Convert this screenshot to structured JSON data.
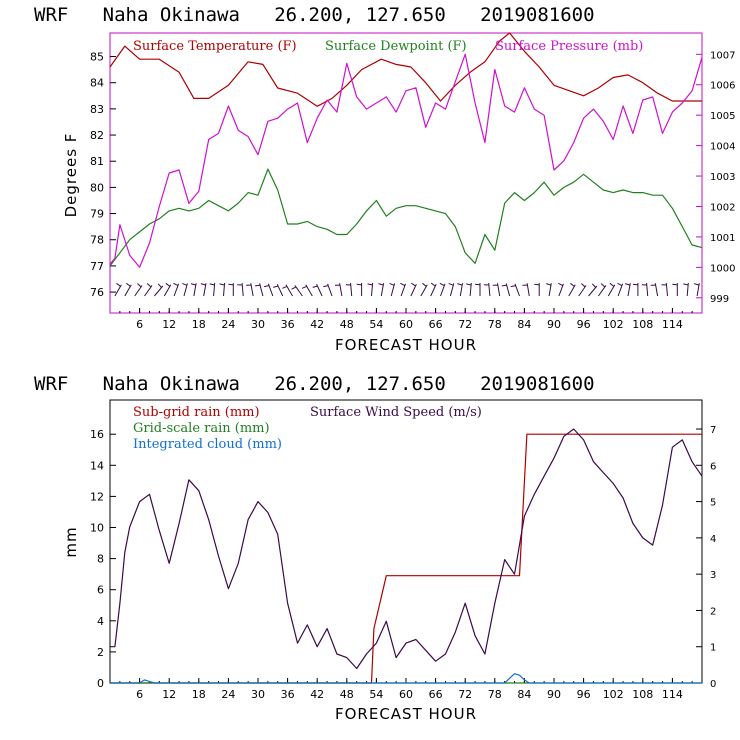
{
  "chart_data": [
    {
      "type": "line",
      "title": "WRF   Naha Okinawa   26.200, 127.650   2019081600",
      "xlabel": "FORECAST HOUR",
      "ylabel": "Degrees F",
      "xlim": [
        0,
        120
      ],
      "ylim": [
        75.2,
        85.9
      ],
      "y2lim": [
        998.5,
        1007.7
      ],
      "xticks": [
        "6",
        "12",
        "18",
        "24",
        "30",
        "36",
        "42",
        "48",
        "54",
        "60",
        "66",
        "72",
        "78",
        "84",
        "90",
        "96",
        "102",
        "108",
        "114"
      ],
      "yticks": [
        "76",
        "77",
        "78",
        "79",
        "80",
        "81",
        "82",
        "83",
        "84",
        "85"
      ],
      "y2ticks": [
        "999",
        "1000",
        "1001",
        "1002",
        "1003",
        "1004",
        "1005",
        "1006",
        "1007"
      ],
      "series": [
        {
          "name": "Surface Temperature (F)",
          "axis": "left",
          "color": "#b00000",
          "x": [
            0,
            3,
            6,
            10,
            14,
            17,
            20,
            24,
            28,
            31,
            34,
            38,
            42,
            45,
            48,
            51,
            55,
            58,
            61,
            64,
            67,
            70,
            73,
            76,
            79,
            81,
            84,
            87,
            90,
            93,
            96,
            99,
            102,
            105,
            108,
            111,
            114,
            117,
            120
          ],
          "y": [
            84.6,
            85.4,
            84.9,
            84.9,
            84.4,
            83.4,
            83.4,
            83.9,
            84.8,
            84.7,
            83.8,
            83.6,
            83.1,
            83.4,
            83.9,
            84.5,
            84.9,
            84.7,
            84.6,
            84.0,
            83.3,
            83.9,
            84.4,
            84.8,
            85.6,
            85.9,
            85.2,
            84.6,
            83.9,
            83.7,
            83.5,
            83.8,
            84.2,
            84.3,
            84.0,
            83.6,
            83.3,
            83.3,
            83.3
          ]
        },
        {
          "name": "Surface Dewpoint (F)",
          "axis": "left",
          "color": "#208020",
          "x": [
            0,
            2,
            4,
            6,
            8,
            10,
            12,
            14,
            16,
            18,
            20,
            22,
            24,
            26,
            28,
            30,
            32,
            34,
            36,
            38,
            40,
            42,
            44,
            46,
            48,
            50,
            52,
            54,
            56,
            58,
            60,
            62,
            64,
            66,
            68,
            70,
            72,
            74,
            76,
            78,
            80,
            82,
            84,
            86,
            88,
            90,
            92,
            94,
            96,
            98,
            100,
            102,
            104,
            106,
            108,
            110,
            112,
            114,
            116,
            118,
            120
          ],
          "y": [
            77.0,
            77.5,
            78.0,
            78.3,
            78.6,
            78.8,
            79.1,
            79.2,
            79.1,
            79.2,
            79.5,
            79.3,
            79.1,
            79.4,
            79.8,
            79.7,
            80.7,
            79.9,
            78.6,
            78.6,
            78.7,
            78.5,
            78.4,
            78.2,
            78.2,
            78.6,
            79.1,
            79.5,
            78.9,
            79.2,
            79.3,
            79.3,
            79.2,
            79.1,
            79.0,
            78.5,
            77.5,
            77.1,
            78.2,
            77.6,
            79.4,
            79.8,
            79.5,
            79.8,
            80.2,
            79.7,
            80.0,
            80.2,
            80.5,
            80.2,
            79.9,
            79.8,
            79.9,
            79.8,
            79.8,
            79.7,
            79.7,
            79.2,
            78.5,
            77.8,
            77.7
          ]
        },
        {
          "name": "Surface Pressure (mb)",
          "axis": "right",
          "color": "#d010d0",
          "x": [
            0,
            1,
            2,
            3,
            4,
            6,
            8,
            10,
            12,
            14,
            16,
            18,
            20,
            22,
            24,
            26,
            28,
            30,
            32,
            34,
            36,
            38,
            40,
            42,
            44,
            46,
            48,
            50,
            52,
            54,
            56,
            58,
            60,
            62,
            64,
            66,
            68,
            70,
            72,
            74,
            76,
            78,
            80,
            82,
            84,
            86,
            88,
            90,
            92,
            94,
            96,
            98,
            100,
            102,
            104,
            106,
            108,
            110,
            112,
            114,
            116,
            118,
            120
          ],
          "y": [
            1000.1,
            1000.3,
            1001.4,
            1000.9,
            1000.4,
            1000.0,
            1000.8,
            1002.0,
            1003.1,
            1003.2,
            1002.1,
            1002.5,
            1004.2,
            1004.4,
            1005.3,
            1004.5,
            1004.3,
            1003.7,
            1004.8,
            1004.9,
            1005.2,
            1005.4,
            1004.1,
            1004.9,
            1005.5,
            1005.1,
            1006.7,
            1005.6,
            1005.2,
            1005.4,
            1005.6,
            1005.1,
            1005.8,
            1005.9,
            1004.6,
            1005.4,
            1005.2,
            1006.1,
            1007.0,
            1005.4,
            1004.1,
            1006.5,
            1005.3,
            1005.1,
            1005.9,
            1005.2,
            1005.0,
            1003.2,
            1003.5,
            1004.1,
            1004.9,
            1005.2,
            1004.8,
            1004.2,
            1005.3,
            1004.4,
            1005.5,
            1005.6,
            1004.4,
            1005.1,
            1005.4,
            1005.8,
            1006.9
          ]
        }
      ],
      "wind_barbs": "row of wind barbs near bottom of panel"
    },
    {
      "type": "line",
      "title": "WRF   Naha Okinawa   26.200, 127.650   2019081600",
      "xlabel": "FORECAST HOUR",
      "ylabel": "mm",
      "xlim": [
        0,
        120
      ],
      "ylim": [
        0,
        18.2
      ],
      "y2lim": [
        0,
        7.8
      ],
      "xticks": [
        "6",
        "12",
        "18",
        "24",
        "30",
        "36",
        "42",
        "48",
        "54",
        "60",
        "66",
        "72",
        "78",
        "84",
        "90",
        "96",
        "102",
        "108",
        "114"
      ],
      "yticks": [
        "0",
        "2",
        "4",
        "6",
        "8",
        "10",
        "12",
        "14",
        "16"
      ],
      "y2ticks": [
        "0",
        "1",
        "2",
        "3",
        "4",
        "5",
        "6",
        "7"
      ],
      "series": [
        {
          "name": "Sub-grid rain (mm)",
          "axis": "left",
          "color": "#b00000",
          "x": [
            0,
            53,
            53.5,
            56,
            83,
            84.5,
            120
          ],
          "y": [
            0,
            0,
            3.5,
            6.9,
            6.9,
            16.0,
            16.0
          ]
        },
        {
          "name": "Grid-scale rain (mm)",
          "axis": "left",
          "color": "#208020",
          "x": [
            0,
            120
          ],
          "y": [
            0,
            0
          ]
        },
        {
          "name": "Integrated cloud (mm)",
          "axis": "left",
          "color": "#1070d0",
          "x": [
            0,
            6,
            7,
            8,
            9,
            40,
            80,
            81,
            82,
            83,
            84,
            85,
            120
          ],
          "y": [
            0,
            0,
            0.2,
            0.1,
            0,
            0,
            0,
            0.3,
            0.6,
            0.5,
            0.2,
            0,
            0
          ]
        },
        {
          "name": "Surface Wind Speed (m/s)",
          "axis": "right",
          "color": "#3a0a4a",
          "x": [
            0,
            1,
            2,
            3,
            4,
            6,
            8,
            10,
            12,
            14,
            16,
            18,
            20,
            22,
            24,
            26,
            28,
            30,
            32,
            34,
            36,
            38,
            40,
            42,
            44,
            46,
            48,
            50,
            52,
            54,
            56,
            58,
            60,
            62,
            64,
            66,
            68,
            70,
            72,
            74,
            76,
            78,
            80,
            82,
            84,
            86,
            88,
            90,
            92,
            94,
            96,
            98,
            100,
            102,
            104,
            106,
            108,
            110,
            112,
            114,
            116,
            118,
            120
          ],
          "y": [
            1.0,
            1.0,
            2.2,
            3.6,
            4.3,
            5.0,
            5.2,
            4.2,
            3.3,
            4.4,
            5.6,
            5.3,
            4.5,
            3.5,
            2.6,
            3.3,
            4.5,
            5.0,
            4.7,
            4.1,
            2.2,
            1.1,
            1.6,
            1.0,
            1.5,
            0.8,
            0.7,
            0.4,
            0.8,
            1.1,
            1.7,
            0.7,
            1.1,
            1.2,
            0.9,
            0.6,
            0.8,
            1.4,
            2.2,
            1.3,
            0.8,
            2.2,
            3.4,
            3.0,
            4.6,
            5.2,
            5.7,
            6.2,
            6.8,
            7.0,
            6.7,
            6.1,
            5.8,
            5.5,
            5.1,
            4.4,
            4.0,
            3.8,
            4.9,
            6.5,
            6.7,
            6.1,
            5.7
          ]
        }
      ]
    }
  ],
  "legend1": {
    "temperature": "Surface Temperature (F)",
    "dewpoint": "Surface Dewpoint (F)",
    "pressure": "Surface Pressure (mb)"
  },
  "legend2": {
    "subgrid": "Sub-grid rain (mm)",
    "wind": "Surface Wind Speed (m/s)",
    "gridscale": "Grid-scale rain (mm)",
    "cloud": "Integrated cloud (mm)"
  },
  "colors": {
    "temperature": "#b00000",
    "dewpoint": "#208020",
    "pressure": "#d010d0",
    "subgrid": "#b00000",
    "gridscale": "#208020",
    "cloud": "#1070d0",
    "wind": "#3a0a4a"
  }
}
